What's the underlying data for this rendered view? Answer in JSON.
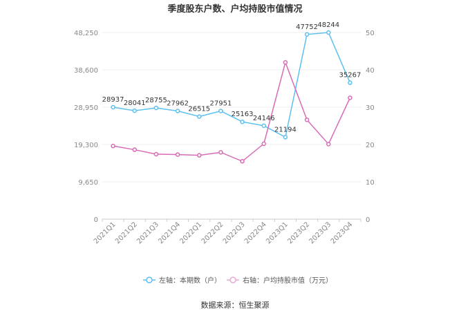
{
  "chart_data": {
    "type": "line",
    "title": "季度股东户数、户均持股市值情况",
    "categories": [
      "2021Q1",
      "2021Q2",
      "2021Q3",
      "2021Q4",
      "2022Q1",
      "2022Q2",
      "2022Q3",
      "2022Q4",
      "2023Q1",
      "2023Q2",
      "2023Q3",
      "2023Q4"
    ],
    "y_left": {
      "min": 0,
      "max": 48250,
      "ticks": [
        "0",
        "9,650",
        "19,300",
        "28,950",
        "38,600",
        "48,250"
      ]
    },
    "y_right": {
      "min": 0,
      "max": 50,
      "ticks": [
        "0",
        "10",
        "20",
        "30",
        "40",
        "50"
      ]
    },
    "series": [
      {
        "name": "左轴：本期数（户）",
        "axis": "left",
        "color": "#5bc0f0",
        "values": [
          28937,
          28041,
          28755,
          27962,
          26515,
          27951,
          25163,
          24146,
          21194,
          47752,
          48244,
          35267
        ],
        "labels": [
          "28937",
          "28041",
          "28755",
          "27962",
          "26515",
          "27951",
          "25163",
          "24146",
          "21194",
          "47752",
          "48244",
          "35267"
        ]
      },
      {
        "name": "右轴：户均持股市值（万元）",
        "axis": "right",
        "color": "#d96bb5",
        "values": [
          19.6,
          18.6,
          17.4,
          17.3,
          17.1,
          17.9,
          15.5,
          20.2,
          42.0,
          26.6,
          20.1,
          32.5
        ]
      }
    ],
    "grid": true,
    "legend": "bottom-center"
  },
  "footer": {
    "source": "数据来源：恒生聚源"
  }
}
